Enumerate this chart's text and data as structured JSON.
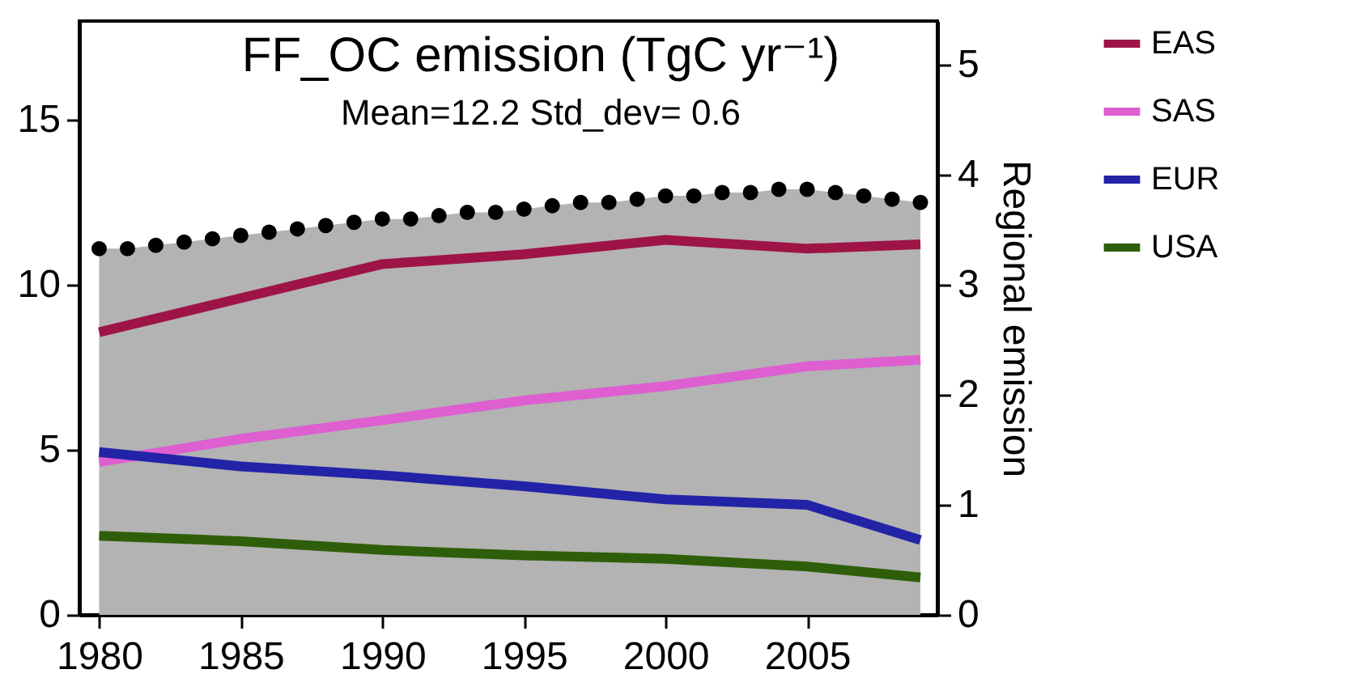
{
  "chart_data": {
    "type": "line",
    "title": "FF_OC emission (TgC yr⁻¹)",
    "subtitle": "Mean=12.2  Std_dev= 0.6",
    "y2label": "Regional emission",
    "xlim": [
      1979.3,
      2009.6
    ],
    "xticks": [
      1980,
      1985,
      1990,
      1995,
      2000,
      2005
    ],
    "ylim": [
      0,
      18
    ],
    "yticks": [
      0,
      5,
      10,
      15
    ],
    "y2lim": [
      0,
      5.4
    ],
    "y2ticks": [
      0,
      1,
      2,
      3,
      4,
      5
    ],
    "grid": false,
    "legend": "right",
    "line_style": "solid",
    "series": [
      {
        "type": "area",
        "color": "#b3b3b3",
        "x": [
          1980,
          1981,
          1982,
          1983,
          1984,
          1985,
          1986,
          1987,
          1988,
          1989,
          1990,
          1991,
          1992,
          1993,
          1994,
          1995,
          1996,
          1997,
          1998,
          1999,
          2000,
          2001,
          2002,
          2003,
          2004,
          2005,
          2006,
          2007,
          2008,
          2009
        ],
        "values": [
          11.1,
          11.1,
          11.2,
          11.3,
          11.4,
          11.5,
          11.6,
          11.7,
          11.8,
          11.9,
          12.0,
          12.0,
          12.1,
          12.2,
          12.2,
          12.3,
          12.4,
          12.5,
          12.5,
          12.6,
          12.7,
          12.7,
          12.8,
          12.8,
          12.9,
          12.9,
          12.8,
          12.7,
          12.6,
          12.5
        ]
      },
      {
        "type": "scatter",
        "color": "#000000",
        "marker": "circle",
        "x": [
          1980,
          1981,
          1982,
          1983,
          1984,
          1985,
          1986,
          1987,
          1988,
          1989,
          1990,
          1991,
          1992,
          1993,
          1994,
          1995,
          1996,
          1997,
          1998,
          1999,
          2000,
          2001,
          2002,
          2003,
          2004,
          2005,
          2006,
          2007,
          2008,
          2009
        ],
        "values": [
          11.1,
          11.1,
          11.2,
          11.3,
          11.4,
          11.5,
          11.6,
          11.7,
          11.8,
          11.9,
          12.0,
          12.0,
          12.1,
          12.2,
          12.2,
          12.3,
          12.4,
          12.5,
          12.5,
          12.6,
          12.7,
          12.7,
          12.8,
          12.8,
          12.9,
          12.9,
          12.8,
          12.7,
          12.6,
          12.5
        ]
      },
      {
        "name": "EAS",
        "color": "#9e1447",
        "axis": "y2",
        "x": [
          1980,
          1985,
          1990,
          1995,
          2000,
          2005,
          2009
        ],
        "values": [
          2.57,
          2.88,
          3.19,
          3.28,
          3.41,
          3.33,
          3.37
        ]
      },
      {
        "name": "SAS",
        "color": "#dd5fd0",
        "axis": "y2",
        "x": [
          1980,
          1985,
          1990,
          1995,
          2000,
          2005,
          2009
        ],
        "values": [
          1.39,
          1.6,
          1.77,
          1.95,
          2.08,
          2.26,
          2.32
        ]
      },
      {
        "name": "EUR",
        "color": "#2323a8",
        "axis": "y2",
        "x": [
          1980,
          1985,
          1990,
          1995,
          2000,
          2005,
          2009
        ],
        "values": [
          1.48,
          1.35,
          1.27,
          1.17,
          1.05,
          1.0,
          0.68
        ]
      },
      {
        "name": "USA",
        "color": "#2f5e0a",
        "axis": "y2",
        "x": [
          1980,
          1985,
          1990,
          1995,
          2000,
          2005,
          2009
        ],
        "values": [
          0.72,
          0.67,
          0.59,
          0.54,
          0.51,
          0.44,
          0.34
        ]
      }
    ]
  }
}
